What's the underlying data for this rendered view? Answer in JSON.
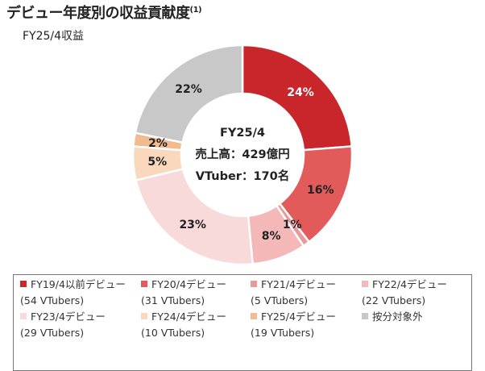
{
  "title": "デビュー年度別の収益貢献度",
  "title_note": "(1)",
  "subtitle": "FY25/4収益",
  "center": {
    "line1": "FY25/4",
    "line2": "売上高：429億円",
    "line3": "VTuber：170名"
  },
  "chart_data": {
    "type": "pie",
    "variant": "donut",
    "slices": [
      {
        "label": "FY19/4以前デビュー",
        "value": 24,
        "value_label": "24%",
        "color": "#c9262b",
        "label_color": "#ffffff"
      },
      {
        "label": "FY20/4デビュー",
        "value": 16,
        "value_label": "16%",
        "color": "#e35a5a",
        "label_color": "#222222"
      },
      {
        "label": "FY21/4デビュー",
        "value": 1,
        "value_label": "1%",
        "color": "#e89a9a",
        "label_color": "#222222"
      },
      {
        "label": "FY22/4デビュー",
        "value": 8,
        "value_label": "8%",
        "color": "#f4b8b8",
        "label_color": "#222222"
      },
      {
        "label": "FY23/4デビュー",
        "value": 23,
        "value_label": "23%",
        "color": "#f9dada",
        "label_color": "#222222"
      },
      {
        "label": "FY24/4デビュー",
        "value": 5,
        "value_label": "5%",
        "color": "#f9d8be",
        "label_color": "#222222"
      },
      {
        "label": "FY25/4デビュー",
        "value": 2,
        "value_label": "2%",
        "color": "#f2bb8f",
        "label_color": "#222222"
      },
      {
        "label": "按分対象外",
        "value": 22,
        "value_label": "22%",
        "color": "#c8c8c8",
        "label_color": "#222222"
      }
    ]
  },
  "legend": [
    {
      "label": "FY19/4以前デビュー",
      "count": "(54 VTubers)",
      "color": "#c9262b"
    },
    {
      "label": "FY20/4デビュー",
      "count": "(31 VTubers)",
      "color": "#e35a5a"
    },
    {
      "label": "FY21/4デビュー",
      "count": "(5 VTubers)",
      "color": "#e89a9a"
    },
    {
      "label": "FY22/4デビュー",
      "count": "(22 VTubers)",
      "color": "#f4b8b8"
    },
    {
      "label": "FY23/4デビュー",
      "count": "(29 VTubers)",
      "color": "#f9dada"
    },
    {
      "label": "FY24/4デビュー",
      "count": "(10 VTubers)",
      "color": "#f9d8be"
    },
    {
      "label": "FY25/4デビュー",
      "count": "(19 VTubers)",
      "color": "#f2bb8f"
    },
    {
      "label": "按分対象外",
      "count": "",
      "color": "#c8c8c8"
    }
  ]
}
